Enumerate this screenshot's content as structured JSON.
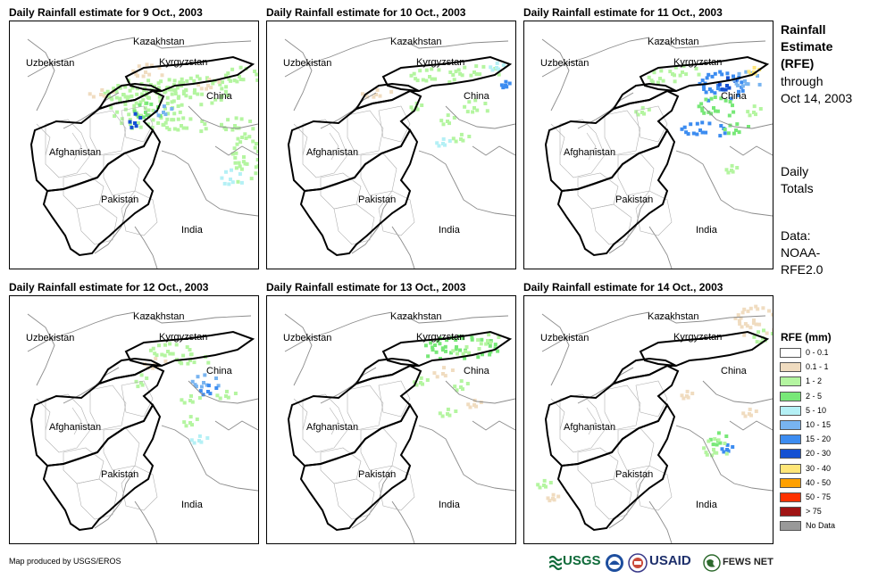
{
  "panels": [
    {
      "title": "Daily Rainfall estimate for 9 Oct., 2003"
    },
    {
      "title": "Daily Rainfall estimate for 10 Oct., 2003"
    },
    {
      "title": "Daily Rainfall estimate for 11 Oct., 2003"
    },
    {
      "title": "Daily Rainfall estimate for 12 Oct., 2003"
    },
    {
      "title": "Daily Rainfall estimate for 13 Oct., 2003"
    },
    {
      "title": "Daily Rainfall estimate for 14 Oct., 2003"
    }
  ],
  "places": {
    "kazakhstan": "Kazakhstan",
    "uzbekistan": "Uzbekistan",
    "kyrgyzstan": "Kyrgyzstan",
    "china": "China",
    "afghanistan": "Afghanistan",
    "pakistan": "Pakistan",
    "india": "India"
  },
  "sidebar": {
    "title_lines": [
      "Rainfall",
      "Estimate",
      "(RFE)"
    ],
    "through": "through",
    "date": "Oct 14, 2003",
    "totals_lines": [
      "Daily",
      "Totals"
    ],
    "data_lines": [
      "Data:",
      "NOAA-",
      "RFE2.0"
    ]
  },
  "legend": {
    "title": "RFE (mm)",
    "items": [
      {
        "label": "0 - 0.1",
        "color": "#ffffff"
      },
      {
        "label": "0.1 - 1",
        "color": "#f0dcc0"
      },
      {
        "label": "1 - 2",
        "color": "#b4f5a0"
      },
      {
        "label": "2 - 5",
        "color": "#78e878"
      },
      {
        "label": "5 - 10",
        "color": "#b4f0f5"
      },
      {
        "label": "10 - 15",
        "color": "#78b4f0"
      },
      {
        "label": "15 - 20",
        "color": "#3c8cf0"
      },
      {
        "label": "20 - 30",
        "color": "#1450d2"
      },
      {
        "label": "30 - 40",
        "color": "#ffe678"
      },
      {
        "label": "40 - 50",
        "color": "#ffa000"
      },
      {
        "label": "50 - 75",
        "color": "#ff3200"
      },
      {
        "label": "> 75",
        "color": "#a01414"
      },
      {
        "label": "No Data",
        "color": "#999999"
      }
    ]
  },
  "footer": {
    "credit": "Map produced by USGS/EROS",
    "logos": {
      "usgs": "USGS",
      "usaid": "USAID",
      "fewsnet": "FEWS NET"
    }
  }
}
